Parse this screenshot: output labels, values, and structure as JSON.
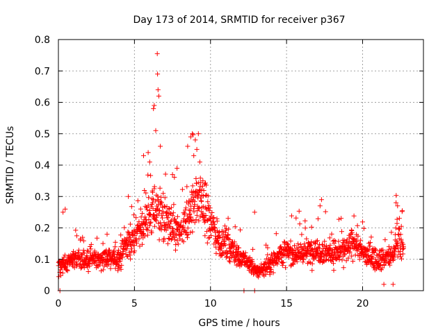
{
  "chart_data": {
    "type": "scatter",
    "title": "Day 173 of 2014, SRMTID for receiver p367",
    "xlabel": "GPS time / hours",
    "ylabel": "SRMTID / TECUs",
    "xlim": [
      0,
      24
    ],
    "ylim": [
      0,
      0.8
    ],
    "xticks": [
      0,
      5,
      10,
      15,
      20
    ],
    "yticks": [
      0,
      0.1,
      0.2,
      0.3,
      0.4,
      0.5,
      0.6,
      0.7,
      0.8
    ],
    "grid": true,
    "marker": "+",
    "color": "#ff0000",
    "envelope": {
      "x": [
        0.0,
        0.5,
        1.0,
        2.0,
        3.0,
        4.0,
        4.5,
        5.0,
        5.5,
        6.0,
        6.5,
        7.0,
        7.5,
        8.0,
        8.5,
        9.0,
        9.5,
        10.0,
        10.5,
        11.0,
        11.5,
        12.0,
        12.5,
        13.0,
        13.5,
        14.0,
        14.5,
        15.0,
        16.0,
        17.0,
        18.0,
        19.0,
        19.5,
        20.0,
        21.0,
        22.0,
        22.3,
        22.7
      ],
      "y": [
        0.08,
        0.09,
        0.1,
        0.095,
        0.105,
        0.1,
        0.15,
        0.17,
        0.2,
        0.24,
        0.27,
        0.22,
        0.2,
        0.18,
        0.22,
        0.3,
        0.28,
        0.22,
        0.16,
        0.15,
        0.13,
        0.1,
        0.09,
        0.06,
        0.07,
        0.09,
        0.12,
        0.12,
        0.12,
        0.13,
        0.12,
        0.13,
        0.16,
        0.12,
        0.1,
        0.11,
        0.19,
        0.12
      ]
    },
    "peaks": {
      "x": [
        0.3,
        0.45,
        3.2,
        4.6,
        6.5,
        6.52,
        6.55,
        6.6,
        6.3,
        6.25,
        6.4,
        6.7,
        5.6,
        5.9,
        6.0,
        8.5,
        8.7,
        8.8,
        9.0,
        9.2,
        9.1,
        8.9,
        9.3,
        9.5,
        7.5,
        7.8,
        12.9,
        17.3,
        17.2,
        22.2,
        22.3
      ],
      "y": [
        0.25,
        0.26,
        0.18,
        0.3,
        0.755,
        0.69,
        0.64,
        0.62,
        0.59,
        0.58,
        0.51,
        0.46,
        0.43,
        0.44,
        0.41,
        0.46,
        0.49,
        0.5,
        0.48,
        0.5,
        0.45,
        0.43,
        0.41,
        0.35,
        0.37,
        0.39,
        0.25,
        0.29,
        0.27,
        0.28,
        0.27
      ]
    },
    "outliers_near_zero": {
      "x": [
        0.1,
        12.2,
        12.9,
        21.4,
        22.0
      ],
      "y": [
        0.0,
        0.0,
        0.0,
        0.02,
        0.02
      ]
    },
    "n_points": 1700,
    "x_range": [
      0.0,
      22.7
    ]
  }
}
